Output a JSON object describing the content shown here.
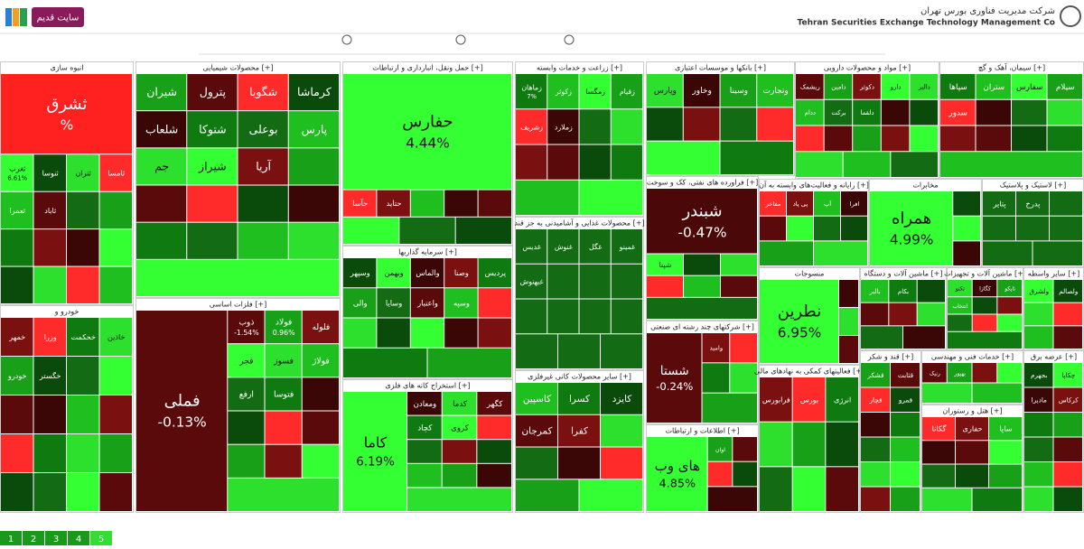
{
  "header": {
    "button": "سایت قدیم",
    "company_fa": "شرکت مدیریت فناوری بورس تهران",
    "company_en": "Tehran Securities Exchange Technology Management Co"
  },
  "sectors": [
    {
      "title": "انبوه سازی",
      "tiles": [
        {
          "name": "ثشرق",
          "change": "%"
        },
        {
          "name": "ثغرب",
          "change": "6.61%"
        },
        {
          "name": "ثنوسا"
        },
        {
          "name": "ثتران"
        },
        {
          "name": "ثامسا"
        },
        {
          "name": "ثعمرا"
        },
        {
          "name": "ثاباد"
        }
      ]
    },
    {
      "title": "خودرو و",
      "tiles": [
        {
          "name": "خمهر"
        },
        {
          "name": "وزرا"
        },
        {
          "name": "خحکمت"
        },
        {
          "name": "خاذین"
        },
        {
          "name": "خودرو"
        },
        {
          "name": "خگستر"
        }
      ]
    },
    {
      "title": "محصولات شیمیایی [+]",
      "tiles": [
        {
          "name": "شیران"
        },
        {
          "name": "پترول"
        },
        {
          "name": "شگویا"
        },
        {
          "name": "کرماشا"
        },
        {
          "name": "شلعاب"
        },
        {
          "name": "شتوکا"
        },
        {
          "name": "بوعلی"
        },
        {
          "name": "پارس"
        },
        {
          "name": "جم"
        },
        {
          "name": "شیراز"
        },
        {
          "name": "آریا"
        }
      ]
    },
    {
      "title": "فلزات اساسی [+]",
      "tiles": [
        {
          "name": "فملی",
          "change": "-0.13%"
        },
        {
          "name": "ذوب",
          "change": "-1.54%"
        },
        {
          "name": "فولاد",
          "change": "0.96%"
        },
        {
          "name": "فلوله"
        },
        {
          "name": "فجر"
        },
        {
          "name": "فسوز"
        },
        {
          "name": "فولاژ"
        },
        {
          "name": "ارفع"
        },
        {
          "name": "فتوسا"
        }
      ]
    },
    {
      "title": "حمل ونقل، انبارداری و ارتباطات [+]",
      "tiles": [
        {
          "name": "حفارس",
          "change": "4.44%"
        },
        {
          "name": "حآسا"
        },
        {
          "name": "حتاید"
        }
      ]
    },
    {
      "title": "سرمایه گذاریها [+]",
      "tiles": [
        {
          "name": "وسپهر"
        },
        {
          "name": "وبهمن"
        },
        {
          "name": "والماس"
        },
        {
          "name": "وصنا"
        },
        {
          "name": "پردیس"
        },
        {
          "name": "والی"
        },
        {
          "name": "وسایا"
        },
        {
          "name": "واعتبار"
        },
        {
          "name": "وسپه"
        }
      ]
    },
    {
      "title": "استخراج کانه های فلزی [+]",
      "tiles": [
        {
          "name": "کاما",
          "change": "6.19%"
        },
        {
          "name": "ومعادن"
        },
        {
          "name": "کدما"
        },
        {
          "name": "کگهر"
        },
        {
          "name": "کچاد"
        },
        {
          "name": "کروی"
        }
      ]
    },
    {
      "title": "زراعت و خدمات وابسته [+]",
      "tiles": [
        {
          "name": "زماهان",
          "change": "7%"
        },
        {
          "name": "زکوثر"
        },
        {
          "name": "زمگسا"
        },
        {
          "name": "زقیام"
        },
        {
          "name": "زشریف"
        },
        {
          "name": "زملارد"
        }
      ]
    },
    {
      "title": "محصولات غذایی و آشامیدنی به جز قند [+]",
      "tiles": [
        {
          "name": "غدیس"
        },
        {
          "name": "غنوش"
        },
        {
          "name": "غگل"
        },
        {
          "name": "غمینو"
        },
        {
          "name": "غبهنوش"
        }
      ]
    },
    {
      "title": "سایر محصولات کانی غیرفلزی [+]",
      "tiles": [
        {
          "name": "کاسپین"
        },
        {
          "name": "کسرا"
        },
        {
          "name": "کایزد"
        },
        {
          "name": "کمرجان"
        },
        {
          "name": "کفرا"
        }
      ]
    },
    {
      "title": "بانکها و موسسات اعتباری [+]",
      "tiles": [
        {
          "name": "وپارس"
        },
        {
          "name": "وخاور"
        },
        {
          "name": "وسینا"
        },
        {
          "name": "وتجارت"
        }
      ]
    },
    {
      "title": "فراورده های نفتی، کک و سوخت [+]",
      "tiles": [
        {
          "name": "شبندر",
          "change": "-0.47%"
        },
        {
          "name": "شپنا"
        }
      ]
    },
    {
      "title": "شرکتهای چند رشته ای صنعتی [+]",
      "tiles": [
        {
          "name": "شستا",
          "change": "-0.24%"
        },
        {
          "name": "وامید"
        }
      ]
    },
    {
      "title": "اطلاعات و ارتباطات [+]",
      "tiles": [
        {
          "name": "های وب",
          "change": "4.85%"
        },
        {
          "name": "اوان"
        }
      ]
    },
    {
      "title": "مواد و محصولات دارویی [+]",
      "tiles": [
        {
          "name": "ریشمک"
        },
        {
          "name": "دامین"
        },
        {
          "name": "دکوثر"
        },
        {
          "name": "دارو"
        },
        {
          "name": "دالبر"
        },
        {
          "name": "ددام"
        },
        {
          "name": "برکت"
        },
        {
          "name": "دلقما"
        }
      ]
    },
    {
      "title": "رایانه و فعالیت‌های وابسته به آن [+]",
      "tiles": [
        {
          "name": "مفاخر"
        },
        {
          "name": "پی پاد"
        },
        {
          "name": "آپ"
        },
        {
          "name": "افرا"
        }
      ]
    },
    {
      "title": "مخابرات",
      "tiles": [
        {
          "name": "همراه",
          "change": "4.99%"
        }
      ]
    },
    {
      "title": "منسوجات",
      "tiles": [
        {
          "name": "نطرین",
          "change": "6.95%"
        }
      ]
    },
    {
      "title": "سیمان، آهک و گچ [+]",
      "tiles": [
        {
          "name": "سپاها"
        },
        {
          "name": "ستران"
        },
        {
          "name": "سفارس"
        },
        {
          "name": "سیلام"
        },
        {
          "name": "سدور"
        }
      ]
    },
    {
      "title": "لاستیک و پلاستیک [+]",
      "tiles": [
        {
          "name": "پتایر"
        },
        {
          "name": "پدرخ"
        }
      ]
    },
    {
      "title": "ماشین آلات و دستگاه [+]",
      "tiles": [
        {
          "name": "بالبر"
        },
        {
          "name": "بکام"
        }
      ]
    },
    {
      "title": "ماشین آلات و تجهیزات [+]",
      "tiles": [
        {
          "name": "تکنو"
        },
        {
          "name": "کگازا"
        },
        {
          "name": "تاپکو"
        },
        {
          "name": "انتخاب"
        }
      ]
    },
    {
      "title": "سایر واسطه [+]",
      "tiles": [
        {
          "name": "ولشرق"
        },
        {
          "name": "ولصالم"
        }
      ]
    },
    {
      "title": "فعالیتهای کمکی به نهادهای مالی [+]",
      "tiles": [
        {
          "name": "فرابورس"
        },
        {
          "name": "بورس"
        },
        {
          "name": "انرژی"
        }
      ]
    },
    {
      "title": "قند و شکر [+]",
      "tiles": [
        {
          "name": "قشکر"
        },
        {
          "name": "قثابت"
        },
        {
          "name": "قچار"
        },
        {
          "name": "قمرو"
        }
      ]
    },
    {
      "title": "خدمات فنی و مهندسی [+]",
      "tiles": [
        {
          "name": "رنیک"
        },
        {
          "name": "بهپور"
        }
      ]
    },
    {
      "title": "هتل و رستوران [+]",
      "tiles": [
        {
          "name": "گکانا"
        },
        {
          "name": "حفاری"
        },
        {
          "name": "ساپا"
        }
      ]
    },
    {
      "title": "عرضه برق [+]",
      "tiles": [
        {
          "name": "بجهرم"
        },
        {
          "name": "چکاپا"
        },
        {
          "name": "ماديرا"
        },
        {
          "name": "کرکاس"
        }
      ]
    }
  ],
  "pager": [
    "1",
    "2",
    "3",
    "4",
    "5"
  ]
}
